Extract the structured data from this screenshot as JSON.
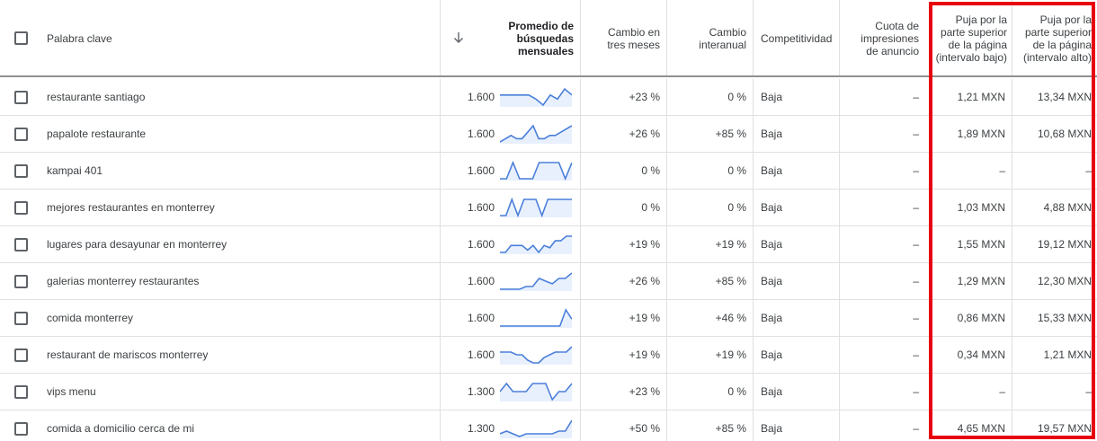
{
  "header": {
    "keyword": "Palabra clave",
    "avg_searches": "Promedio de búsquedas mensuales",
    "three_month_change": "Cambio en tres meses",
    "yoy_change": "Cambio interanual",
    "competition": "Competitividad",
    "impression_share": "Cuota de impresiones de anuncio",
    "bid_low": "Puja por la parte superior de la página (intervalo bajo)",
    "bid_high": "Puja por la parte superior de la página (intervalo alto)",
    "sort_icon": "arrow-down-icon"
  },
  "colors": {
    "sparkline": "#4a7fd9",
    "sparkline_fill": "#e8f0fe",
    "highlight_border": "#e8000b"
  },
  "rows": [
    {
      "keyword": "restaurante santiago",
      "avg": "1.600",
      "change3m": "+23 %",
      "yoy": "0 %",
      "competition": "Baja",
      "share": "–",
      "low": "1,21 MXN",
      "high": "13,34 MXN",
      "trend": [
        6,
        6,
        6,
        6,
        6,
        4,
        1,
        6,
        4,
        9,
        6
      ]
    },
    {
      "keyword": "papalote restaurante",
      "avg": "1.600",
      "change3m": "+26 %",
      "yoy": "+85 %",
      "competition": "Baja",
      "share": "–",
      "low": "1,89 MXN",
      "high": "10,68 MXN",
      "trend": [
        1,
        2,
        3,
        2,
        2,
        4,
        6,
        2,
        2,
        3,
        3,
        4,
        5,
        6
      ]
    },
    {
      "keyword": "kampai 401",
      "avg": "1.600",
      "change3m": "0 %",
      "yoy": "0 %",
      "competition": "Baja",
      "share": "–",
      "low": "–",
      "high": "–",
      "trend": [
        2,
        2,
        8,
        2,
        2,
        2,
        8,
        8,
        8,
        8,
        2,
        8
      ]
    },
    {
      "keyword": "mejores restaurantes en monterrey",
      "avg": "1.600",
      "change3m": "0 %",
      "yoy": "0 %",
      "competition": "Baja",
      "share": "–",
      "low": "1,03 MXN",
      "high": "4,88 MXN",
      "trend": [
        1,
        1,
        7,
        1,
        7,
        7,
        7,
        1,
        7,
        7,
        7,
        7,
        7
      ]
    },
    {
      "keyword": "lugares para desayunar en monterrey",
      "avg": "1.600",
      "change3m": "+19 %",
      "yoy": "+19 %",
      "competition": "Baja",
      "share": "–",
      "low": "1,55 MXN",
      "high": "19,12 MXN",
      "trend": [
        1,
        1,
        4,
        4,
        4,
        2,
        4,
        1,
        4,
        3,
        6,
        6,
        8,
        8
      ]
    },
    {
      "keyword": "galerias monterrey restaurantes",
      "avg": "1.600",
      "change3m": "+26 %",
      "yoy": "+85 %",
      "competition": "Baja",
      "share": "–",
      "low": "1,29 MXN",
      "high": "12,30 MXN",
      "trend": [
        1,
        1,
        1,
        1,
        2,
        2,
        5,
        4,
        3,
        5,
        5,
        7
      ]
    },
    {
      "keyword": "comida monterrey",
      "avg": "1.600",
      "change3m": "+19 %",
      "yoy": "+46 %",
      "competition": "Baja",
      "share": "–",
      "low": "0,86 MXN",
      "high": "15,33 MXN",
      "trend": [
        1,
        1,
        1,
        1,
        1,
        1,
        1,
        1,
        1,
        1,
        1,
        8,
        4
      ]
    },
    {
      "keyword": "restaurant de mariscos monterrey",
      "avg": "1.600",
      "change3m": "+19 %",
      "yoy": "+19 %",
      "competition": "Baja",
      "share": "–",
      "low": "0,34 MXN",
      "high": "1,21 MXN",
      "trend": [
        5,
        5,
        5,
        4,
        4,
        2,
        1,
        1,
        3,
        4,
        5,
        5,
        5,
        7
      ]
    },
    {
      "keyword": "vips menu",
      "avg": "1.300",
      "change3m": "+23 %",
      "yoy": "0 %",
      "competition": "Baja",
      "share": "–",
      "low": "–",
      "high": "–",
      "trend": [
        5,
        8,
        5,
        5,
        5,
        8,
        8,
        8,
        2,
        5,
        5,
        8
      ]
    },
    {
      "keyword": "comida a domicilio cerca de mi",
      "avg": "1.300",
      "change3m": "+50 %",
      "yoy": "+85 %",
      "competition": "Baja",
      "share": "–",
      "low": "4,65 MXN",
      "high": "19,57 MXN",
      "trend": [
        2,
        3,
        2,
        1,
        2,
        2,
        2,
        2,
        2,
        3,
        3,
        7
      ]
    }
  ]
}
